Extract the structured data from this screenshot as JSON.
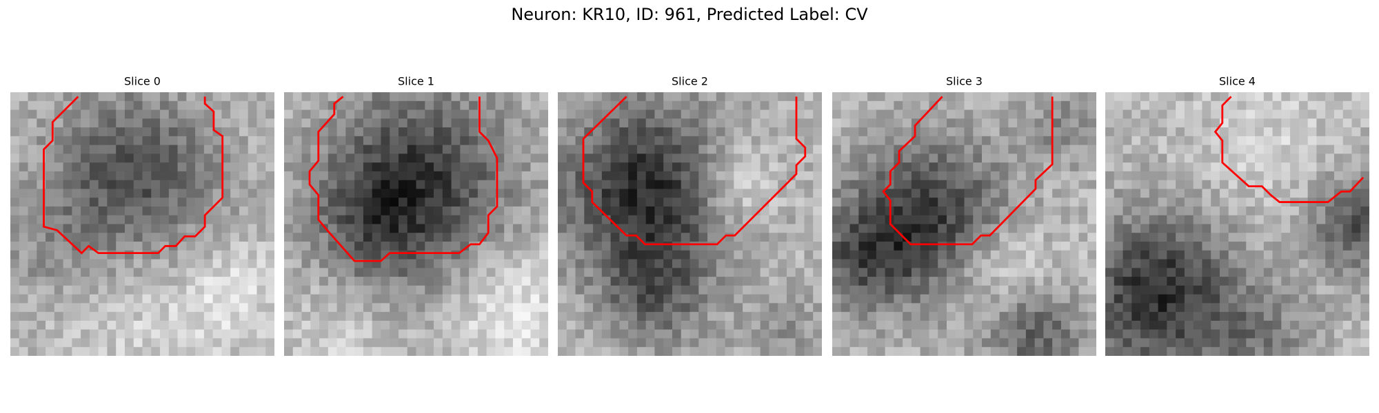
{
  "title": "Neuron: KR10, ID: 961, Predicted Label: CV",
  "panels": [
    {
      "title": "Slice 0"
    },
    {
      "title": "Slice 1"
    },
    {
      "title": "Slice 2"
    },
    {
      "title": "Slice 3"
    },
    {
      "title": "Slice 4"
    }
  ]
}
